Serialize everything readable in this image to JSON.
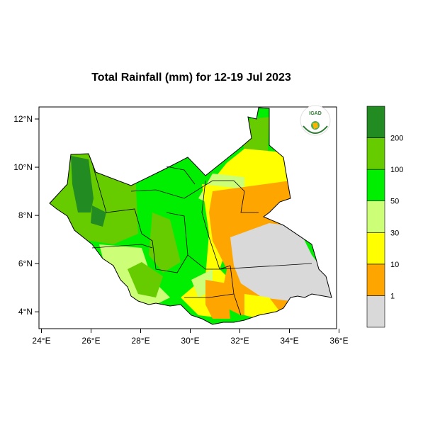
{
  "map": {
    "title": "Total Rainfall (mm) for 12-19 Jul 2023",
    "x_ticks": [
      {
        "value": 24,
        "label": "24°E"
      },
      {
        "value": 26,
        "label": "26°E"
      },
      {
        "value": 28,
        "label": "28°E"
      },
      {
        "value": 30,
        "label": "30°E"
      },
      {
        "value": 32,
        "label": "32°E"
      },
      {
        "value": 34,
        "label": "34°E"
      },
      {
        "value": 36,
        "label": "36°E"
      }
    ],
    "y_ticks": [
      {
        "value": 4,
        "label": "4°N"
      },
      {
        "value": 6,
        "label": "6°N"
      },
      {
        "value": 8,
        "label": "8°N"
      },
      {
        "value": 10,
        "label": "10°N"
      },
      {
        "value": 12,
        "label": "12°N"
      }
    ],
    "lon_range": [
      23.9,
      35.9
    ],
    "lat_range": [
      3.3,
      12.5
    ],
    "logo_text": "IGAD"
  },
  "legend": {
    "bins": [
      {
        "color": "#d9d9d9",
        "label": "1"
      },
      {
        "color": "#ffa500",
        "label": "10"
      },
      {
        "color": "#ffff00",
        "label": "30"
      },
      {
        "color": "#ccff77",
        "label": "50"
      },
      {
        "color": "#00ee00",
        "label": "100"
      },
      {
        "color": "#66cc00",
        "label": "200"
      },
      {
        "color": "#228b22",
        "label": ""
      }
    ]
  }
}
